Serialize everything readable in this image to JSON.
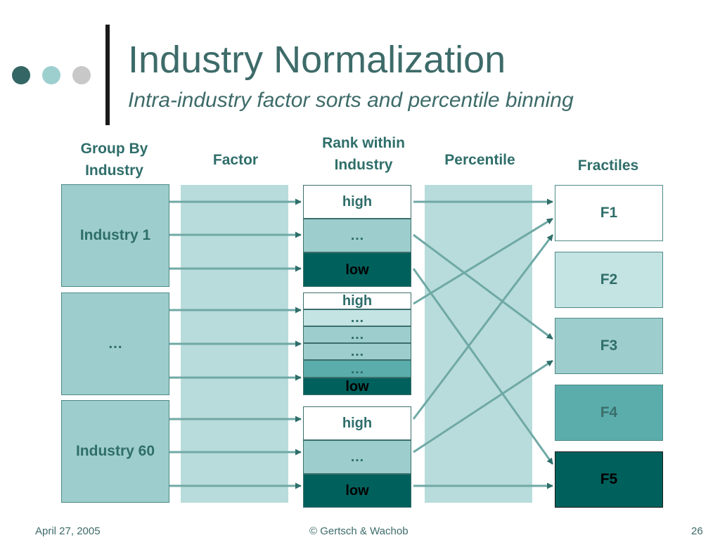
{
  "slide": {
    "title": "Industry Normalization",
    "subtitle": "Intra-industry factor sorts and percentile binning"
  },
  "columns": {
    "group": "Group By Industry",
    "factor": "Factor",
    "rank": "Rank within Industry",
    "percentile": "Percentile",
    "fractiles": "Fractiles"
  },
  "industries": [
    "Industry 1",
    "…",
    "Industry 60"
  ],
  "rank_groups": [
    [
      "high",
      "…",
      "low"
    ],
    [
      "high",
      "…",
      "…",
      "…",
      "…",
      "low"
    ],
    [
      "high",
      "…",
      "low"
    ]
  ],
  "fractiles": [
    "F1",
    "F2",
    "F3",
    "F4",
    "F5"
  ],
  "colors": {
    "accent_dark": "#00605c",
    "accent_mid": "#5aadab",
    "accent_light": "#9dcdcc",
    "accent_pale": "#c4e3e3",
    "text": "#2f6e6a",
    "arrow": "#6fa9a6"
  },
  "footer": {
    "date": "April 27, 2005",
    "copyright": "© Gertsch & Wachob",
    "page": "26"
  }
}
